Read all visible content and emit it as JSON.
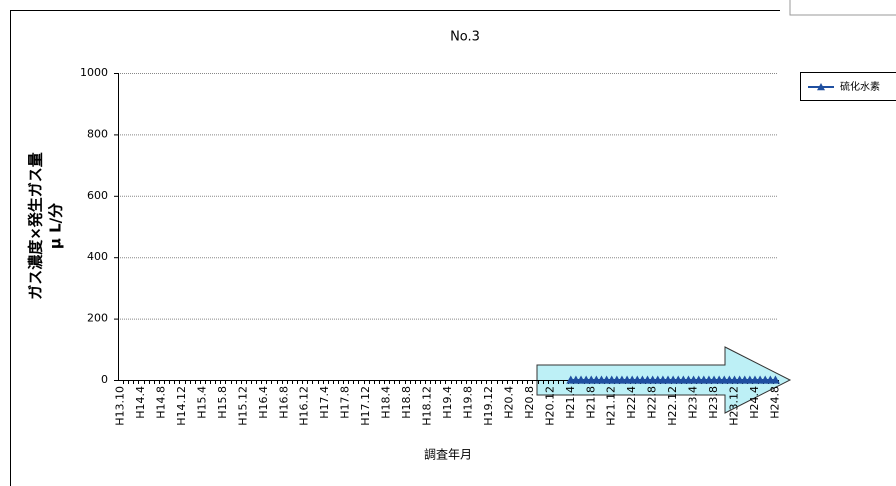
{
  "chart_data": {
    "type": "line",
    "title": "No.3",
    "ylabel": [
      "ガス濃度×発生ガス量",
      "μ L/分"
    ],
    "xlabel": "調査年月",
    "categories": [
      "H13.10",
      null,
      null,
      null,
      "H14.4",
      null,
      null,
      null,
      "H14.8",
      null,
      null,
      null,
      "H14.12",
      null,
      null,
      null,
      "H15.4",
      null,
      null,
      null,
      "H15.8",
      null,
      null,
      null,
      "H15.12",
      null,
      null,
      null,
      "H16.4",
      null,
      null,
      null,
      "H16.8",
      null,
      null,
      null,
      "H16.12",
      null,
      null,
      null,
      "H17.4",
      null,
      null,
      null,
      "H17.8",
      null,
      null,
      null,
      "H17.12",
      null,
      null,
      null,
      "H18.4",
      null,
      null,
      null,
      "H18.8",
      null,
      null,
      null,
      "H18.12",
      null,
      null,
      null,
      "H19.4",
      null,
      null,
      null,
      "H19.8",
      null,
      null,
      null,
      "H19.12",
      null,
      null,
      null,
      "H20.4",
      null,
      null,
      null,
      "H20.8",
      null,
      null,
      null,
      "H20.12",
      null,
      null,
      null,
      "H21.4",
      null,
      null,
      null,
      "H21.8",
      null,
      null,
      null,
      "H21.12",
      null,
      null,
      null,
      "H22.4",
      null,
      null,
      null,
      "H22.8",
      null,
      null,
      null,
      "H22.12",
      null,
      null,
      null,
      "H23.4",
      null,
      null,
      null,
      "H23.8",
      null,
      null,
      null,
      "H23.12",
      null,
      null,
      null,
      "H24.4",
      null,
      null,
      null,
      "H24.8"
    ],
    "series": [
      {
        "name": "硫化水素",
        "color": "#1f4fa0",
        "values": [
          null,
          null,
          null,
          null,
          null,
          null,
          null,
          null,
          null,
          null,
          null,
          null,
          null,
          null,
          null,
          null,
          null,
          null,
          null,
          null,
          null,
          null,
          null,
          null,
          null,
          null,
          null,
          null,
          null,
          null,
          null,
          null,
          null,
          null,
          null,
          null,
          null,
          null,
          null,
          null,
          null,
          null,
          null,
          null,
          null,
          null,
          null,
          null,
          null,
          null,
          null,
          null,
          null,
          null,
          null,
          null,
          null,
          null,
          null,
          null,
          null,
          null,
          null,
          null,
          null,
          null,
          null,
          null,
          null,
          null,
          null,
          null,
          null,
          null,
          null,
          null,
          null,
          null,
          null,
          null,
          null,
          null,
          null,
          null,
          null,
          null,
          null,
          null,
          0,
          0,
          0,
          0,
          0,
          0,
          0,
          0,
          0,
          0,
          0,
          0,
          0,
          0,
          0,
          0,
          0,
          0,
          0,
          0,
          0,
          0,
          0,
          0,
          0,
          0,
          0,
          0,
          0,
          0,
          0,
          0,
          0,
          0,
          0,
          0,
          0,
          0,
          0,
          0,
          0
        ]
      }
    ],
    "ylim": [
      0,
      1000
    ],
    "yticks": [
      0,
      200,
      400,
      600,
      800,
      1000
    ],
    "grid": true,
    "legend": "right"
  }
}
